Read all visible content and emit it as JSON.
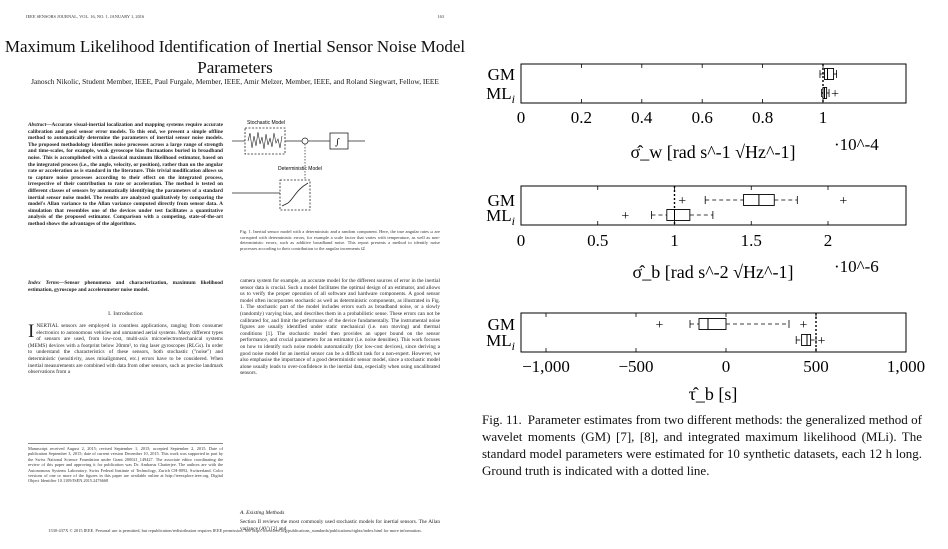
{
  "paper": {
    "running_head": "IEEE SENSORS JOURNAL, VOL. 16, NO. 1, JANUARY 1, 2016",
    "page_number": "163",
    "title": "Maximum Likelihood Identification of Inertial Sensor Noise Model Parameters",
    "authors": "Janosch Nikolic, Student Member, IEEE, Paul Furgale, Member, IEEE, Amir Melzer, Member, IEEE, and Roland Siegwart, Fellow, IEEE",
    "abstract_label": "Abstract",
    "abstract": "—Accurate visual-inertial localization and mapping systems require accurate calibration and good sensor error models. To this end, we present a simple offline method to automatically determine the parameters of inertial sensor noise models. The proposed methodology identifies noise processes across a large range of strength and time-scales, for example, weak gyroscope bias fluctuations buried in broadband noise. This is accomplished with a classical maximum likelihood estimator, based on the integrated process (i.e., the angle, velocity, or position), rather than on the angular rate or acceleration as is standard in the literature. This trivial modification allows us to capture noise processes according to their effect on the integrated process, irrespective of their contribution to rate or acceleration. The method is tested on different classes of sensors by automatically identifying the parameters of a standard inertial sensor noise model. The results are analyzed qualitatively by comparing the model's Allan variance to the Allan variance computed directly from sensor data. A simulation that resembles one of the devices under test facilitates a quantitative analysis of the proposed estimator. Comparison with a competing, state-of-the-art method shows the advantages of the algorithms.",
    "index_terms_label": "Index Terms",
    "index_terms": "—Sensor phenomena and characterization, maximum likelihood estimation, gyroscope and accelerometer noise model.",
    "section_heading": "I. Introduction",
    "intro_dropcap": "I",
    "intro_text": "NERTIAL sensors are employed in countless applications, ranging from consumer electronics to autonomous vehicles and unmanned aerial systems. Many different types of sensors are used, from low-cost, multi-axis microelectromechanical systems (MEMS) devices with a footprint below 20mm², to ring laser gyroscopes (RLGs). In order to understand the characteristics of these sensors, both stochastic (\"noise\") and deterministic (sensitivity, axes misalignment, etc.) errors have to be considered. When inertial measurements are combined with data from other sensors, such as precise landmark observations from a",
    "footnote": "Manuscript received August 2, 2015; revised September 1, 2015; accepted September 2, 2015. Date of publication September 3, 2015; date of current version December 10, 2015. This work was supported in part by the Swiss National Science Foundation under Grant 200021_149427. The associate editor coordinating the review of this paper and approving it for publication was Dr. Ambarus Chatterjee. The authors are with the Autonomous Systems Laboratory, Swiss Federal Institute of Technology, Zurich CH-8092, Switzerland. Color versions of one or more of the figures in this paper are available online at http://ieeexplore.ieee.org. Digital Object Identifier 10.1109/JSEN.2015.2476668",
    "right_col_text": "camera system for example, an accurate model for the different sources of error in the inertial sensor data is crucial. Such a model facilitates the optimal design of an estimator, and allows us to verify the proper operation of all software and hardware components. A good sensor model often incorporates stochastic as well as deterministic components, as illustrated in Fig. 1. The stochastic part of the model includes errors such as broadband noise, or a slowly (randomly) varying bias, and describes them in a probabilistic sense. These errors can not be calibrated for, and limit the performance of the device fundamentally. The instrumental noise figures are usually identified under static mechanical (i.e. non moving) and thermal conditions [1]. The stochastic model then provides an upper bound on the sensor performance, and crucial parameters for an estimator (i.e. noise densities). This work focuses on how to identify such noise models automatically (for low-cost devices), since deriving a good noise model for an inertial sensor can be a difficult task for a non-expert. However, we also emphasise the importance of a good deterministic sensor model, since a stochastic model alone usually leads to over-confidence in the inertial data, especially when using uncalibrated sensors.",
    "subsection": "A. Existing Methods",
    "right_col_text2": "Section II reviews the most commonly used stochastic models for inertial sensors. The Allan variance (AV) [2] and",
    "fig1_caption": "Fig. 1. Inertial sensor model with a deterministic and a random component. Here, the true angular rates ω are corrupted with deterministic errors, for example a scale factor that varies with temperature, as well as non-deterministic errors, such as additive broadband noise. This report presents a method to identify noise processes according to their contribution to the angular increments Ω̂.",
    "fig1_labels": {
      "stochastic": "Stochastic Model",
      "deterministic": "Deterministic Model"
    },
    "bottom_note": "1530-437X © 2015 IEEE. Personal use is permitted, but republication/redistribution requires IEEE permission. See http://www.ieee.org/publications_standards/publications/rights/index.html for more information."
  },
  "figure": {
    "caption_label": "Fig. 11.",
    "caption_text": "Parameter estimates from two different methods: the generalized method of wavelet moments (GM) [7], [8], and integrated maximum likelihood (MLi). The standard model parameters were estimated for 10 synthetic datasets, each 12 h long. Ground truth is indicated with a dotted line."
  },
  "chart_data": [
    {
      "type": "boxplot",
      "orientation": "horizontal",
      "categories": [
        "GM",
        "ML_i"
      ],
      "xlabel": "σ̂_w [rad s^-1 √Hz^-1]",
      "exponent_label": "·10^-4",
      "xlim": [
        0,
        1.1
      ],
      "xticks": [
        "0",
        "0.2",
        "0.4",
        "0.6",
        "0.8",
        "1"
      ],
      "ground_truth": 1.0,
      "series": [
        {
          "name": "GM",
          "whisker_low": 0.99,
          "q1": 1.005,
          "median": 1.015,
          "q3": 1.035,
          "whisker_high": 1.045,
          "outliers": []
        },
        {
          "name": "ML_i",
          "whisker_low": 0.995,
          "q1": 1.0,
          "median": 1.005,
          "q3": 1.012,
          "whisker_high": 1.02,
          "outliers": [
            1.04
          ]
        }
      ]
    },
    {
      "type": "boxplot",
      "orientation": "horizontal",
      "categories": [
        "GM",
        "ML_i"
      ],
      "xlabel": "σ̂_b [rad s^-2 √Hz^-1]",
      "exponent_label": "·10^-6",
      "xlim": [
        0,
        2.4
      ],
      "xticks": [
        "0",
        "0.5",
        "1",
        "1.5",
        "2"
      ],
      "ground_truth": 1.0,
      "series": [
        {
          "name": "GM",
          "whisker_low": 1.2,
          "q1": 1.45,
          "median": 1.55,
          "q3": 1.65,
          "whisker_high": 1.8,
          "outliers": [
            1.05,
            2.1
          ]
        },
        {
          "name": "ML_i",
          "whisker_low": 0.85,
          "q1": 0.95,
          "median": 1.0,
          "q3": 1.1,
          "whisker_high": 1.25,
          "outliers": [
            0.68
          ]
        }
      ]
    },
    {
      "type": "boxplot",
      "orientation": "horizontal",
      "categories": [
        "GM",
        "ML_i"
      ],
      "xlabel": "τ̂_b [s]",
      "exponent_label": "",
      "xlim": [
        -1100,
        1000
      ],
      "xticks": [
        "−1,000",
        "−500",
        "0",
        "500",
        "1,000"
      ],
      "ground_truth": 500,
      "series": [
        {
          "name": "GM",
          "whisker_low": -200,
          "q1": -150,
          "median": -100,
          "q3": 0,
          "whisker_high": 350,
          "outliers": [
            -370,
            430
          ]
        },
        {
          "name": "ML_i",
          "whisker_low": 390,
          "q1": 420,
          "median": 450,
          "q3": 470,
          "whisker_high": 500,
          "outliers": [
            530
          ]
        }
      ]
    }
  ]
}
